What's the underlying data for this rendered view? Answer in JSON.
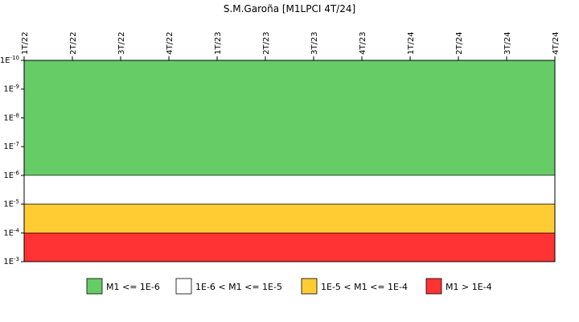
{
  "chart_data": {
    "type": "area",
    "title": "S.M.Garoña [M1LPCI 4T/24]",
    "x_categories": [
      "1T/22",
      "2T/22",
      "3T/22",
      "4T/22",
      "1T/23",
      "2T/23",
      "3T/23",
      "4T/23",
      "1T/24",
      "2T/24",
      "3T/24",
      "4T/24"
    ],
    "y_scale": "log",
    "y_ticks": [
      {
        "exp": -10,
        "label_base": "1E",
        "label_exp": "-10"
      },
      {
        "exp": -9,
        "label_base": "1E",
        "label_exp": "-9"
      },
      {
        "exp": -8,
        "label_base": "1E",
        "label_exp": "-8"
      },
      {
        "exp": -7,
        "label_base": "1E",
        "label_exp": "-7"
      },
      {
        "exp": -6,
        "label_base": "1E",
        "label_exp": "-6"
      },
      {
        "exp": -5,
        "label_base": "1E",
        "label_exp": "-5"
      },
      {
        "exp": -4,
        "label_base": "1E",
        "label_exp": "-4"
      },
      {
        "exp": -3,
        "label_base": "1E",
        "label_exp": "-3"
      }
    ],
    "y_range_exp": [
      -10,
      -3
    ],
    "bands": [
      {
        "from_exp": -10,
        "to_exp": -6,
        "color": "#66cc66",
        "legend": "M1 <= 1E-6"
      },
      {
        "from_exp": -6,
        "to_exp": -5,
        "color": "#ffffff",
        "legend": "1E-6 < M1 <= 1E-5"
      },
      {
        "from_exp": -5,
        "to_exp": -4,
        "color": "#ffcc33",
        "legend": "1E-5 < M1 <= 1E-4"
      },
      {
        "from_exp": -4,
        "to_exp": -3,
        "color": "#ff3333",
        "legend": "M1 > 1E-4"
      }
    ]
  }
}
